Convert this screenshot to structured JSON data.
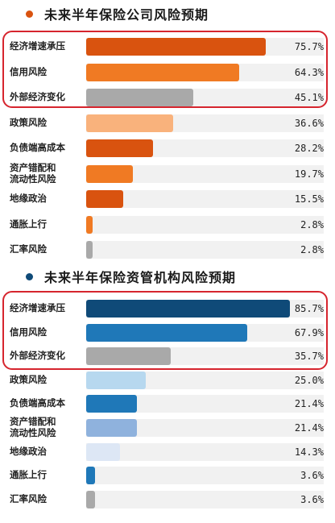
{
  "chart_data": [
    {
      "type": "bar",
      "title": "未来半年保险公司风险预期",
      "categories": [
        "经济增速承压",
        "信用风险",
        "外部经济变化",
        "政策风险",
        "负债端高成本",
        "资产错配和\n流动性风险",
        "地缘政治",
        "通胀上行",
        "汇率风险"
      ],
      "values": [
        75.7,
        64.3,
        45.1,
        36.6,
        28.2,
        19.7,
        15.5,
        2.8,
        2.8
      ],
      "value_labels": [
        "75.7%",
        "64.3%",
        "45.1%",
        "36.6%",
        "28.2%",
        "19.7%",
        "15.5%",
        "2.8%",
        "2.8%"
      ],
      "colors": [
        "#d9530f",
        "#f07a23",
        "#a9a9a9",
        "#f9b27c",
        "#d9530f",
        "#f07a23",
        "#d9530f",
        "#f07a23",
        "#a9a9a9"
      ],
      "xlim": [
        0,
        100
      ],
      "highlighted_top": 3,
      "title_dot_color": "#d9530f"
    },
    {
      "type": "bar",
      "title": "未来半年保险资管机构风险预期",
      "categories": [
        "经济增速承压",
        "信用风险",
        "外部经济变化",
        "政策风险",
        "负债端高成本",
        "资产错配和\n流动性风险",
        "地缘政治",
        "通胀上行",
        "汇率风险"
      ],
      "values": [
        85.7,
        67.9,
        35.7,
        25.0,
        21.4,
        21.4,
        14.3,
        3.6,
        3.6
      ],
      "value_labels": [
        "85.7%",
        "67.9%",
        "35.7%",
        "25.0%",
        "21.4%",
        "21.4%",
        "14.3%",
        "3.6%",
        "3.6%"
      ],
      "colors": [
        "#0f4a78",
        "#1f78b8",
        "#a9a9a9",
        "#b7d8ef",
        "#1f78b8",
        "#8fb2dd",
        "#dde7f5",
        "#1f78b8",
        "#a9a9a9"
      ],
      "xlim": [
        0,
        100
      ],
      "highlighted_top": 3,
      "title_dot_color": "#0f4a78"
    }
  ]
}
